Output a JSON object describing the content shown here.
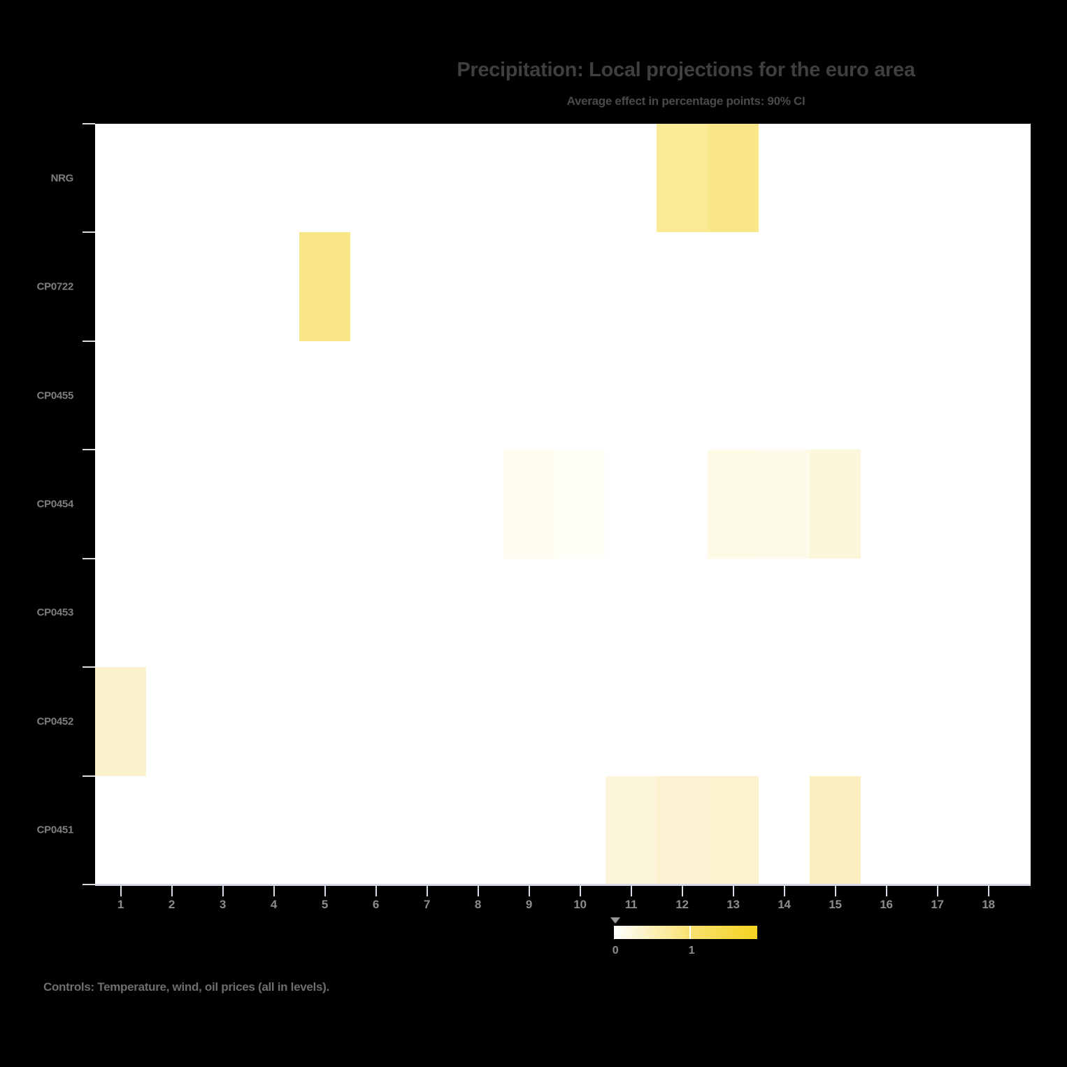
{
  "chart_data": {
    "type": "heatmap",
    "title": "Precipitation: Local projections for the euro area",
    "subtitle": "Average effect in percentage points: 90% CI",
    "footnote": "Controls: Temperature, wind, oil prices (all in levels).",
    "rows": [
      "NRG",
      "CP0722",
      "CP0455",
      "CP0454",
      "CP0453",
      "CP0452",
      "CP0451"
    ],
    "x_ticks": [
      "1",
      "2",
      "3",
      "4",
      "5",
      "6",
      "7",
      "8",
      "9",
      "10",
      "11",
      "12",
      "13",
      "14",
      "15",
      "16",
      "17",
      "18"
    ],
    "legend_position": "bottom-center",
    "grid": false,
    "cells": [
      {
        "row": "NRG",
        "col": 12,
        "value": 0.95,
        "color": "#FAE995"
      },
      {
        "row": "NRG",
        "col": 13,
        "value": 1.03,
        "color": "#F9E78A"
      },
      {
        "row": "CP0722",
        "col": 5,
        "value": 1.05,
        "color": "#F9E687"
      },
      {
        "row": "CP0454",
        "col": 9,
        "value": 0.14,
        "color": "#FEFCEE"
      },
      {
        "row": "CP0454",
        "col": 10,
        "value": 0.07,
        "color": "#FFFEF7"
      },
      {
        "row": "CP0454",
        "col": 13,
        "value": 0.2,
        "color": "#FDFAE7"
      },
      {
        "row": "CP0454",
        "col": 14,
        "value": 0.18,
        "color": "#FDFAE9"
      },
      {
        "row": "CP0454",
        "col": 15,
        "value": 0.3,
        "color": "#FCF6DB"
      },
      {
        "row": "CP0452",
        "col": 1,
        "value": 0.44,
        "color": "#FBF2CB"
      },
      {
        "row": "CP0451",
        "col": 11,
        "value": 0.28,
        "color": "#FDF6DD"
      },
      {
        "row": "CP0451",
        "col": 12,
        "value": 0.38,
        "color": "#FCF2D2"
      },
      {
        "row": "CP0451",
        "col": 13,
        "value": 0.4,
        "color": "#FCF2CF"
      },
      {
        "row": "CP0451",
        "col": 15,
        "value": 0.48,
        "color": "#FBEFC2"
      }
    ],
    "colorbar": {
      "tick_labels": [
        "0",
        "1"
      ],
      "tick_values": [
        0,
        1
      ],
      "max_value": 1.88,
      "min_color": "#FFFFFF",
      "mid_color": "#F8E171",
      "max_color": "#F5D320"
    },
    "colors": {
      "page_bg": "#000000",
      "plot_bg": "#FFFFFF",
      "axis_line": "#D6DBE7",
      "y_tick": "#DCDCDC",
      "title": "#3F3F3F",
      "subtitle": "#4A4A4A",
      "axis_label": "#8C8C8C",
      "y_label": "#7E7E7E",
      "footnote": "#6E6E6E"
    }
  }
}
